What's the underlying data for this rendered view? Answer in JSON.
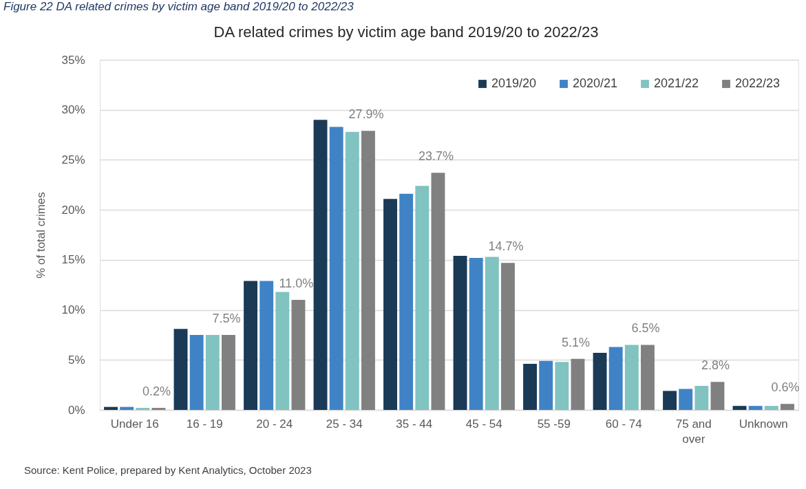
{
  "chart_data": {
    "type": "bar",
    "title": "DA related crimes by victim age band 2019/20 to 2022/23",
    "ylabel": "% of total crimes",
    "annotations": [
      "Figure 22 DA related crimes by victim age band 2019/20 to 2022/23",
      "Source: Kent Police, prepared by Kent Analytics, October 2023"
    ],
    "categories": [
      "Under 16",
      "16 - 19",
      "20 - 24",
      "25 - 34",
      "35 - 44",
      "45 - 54",
      "55 -59",
      "60 - 74",
      "75 and over",
      "Unknown"
    ],
    "series": [
      {
        "name": "2019/20",
        "color": "#1a3a56",
        "values": [
          0.3,
          8.1,
          12.9,
          29.0,
          21.1,
          15.4,
          4.6,
          5.7,
          1.9,
          0.4
        ]
      },
      {
        "name": "2020/21",
        "color": "#3f83c6",
        "values": [
          0.3,
          7.5,
          12.9,
          28.3,
          21.6,
          15.2,
          4.9,
          6.3,
          2.1,
          0.4
        ]
      },
      {
        "name": "2021/22",
        "color": "#80c3c0",
        "values": [
          0.2,
          7.5,
          11.8,
          27.8,
          22.4,
          15.3,
          4.8,
          6.5,
          2.4,
          0.4
        ]
      },
      {
        "name": "2022/23",
        "color": "#808080",
        "values": [
          0.2,
          7.5,
          11.0,
          27.9,
          23.7,
          14.7,
          5.1,
          6.5,
          2.8,
          0.6
        ],
        "value_labels": [
          "0.2%",
          "7.5%",
          "11.0%",
          "27.9%",
          "23.7%",
          "14.7%",
          "5.1%",
          "6.5%",
          "2.8%",
          "0.6%"
        ]
      }
    ],
    "ylim": [
      0,
      35
    ],
    "yticks": [
      {
        "value": 0,
        "label": "0%"
      },
      {
        "value": 5,
        "label": "5%"
      },
      {
        "value": 10,
        "label": "10%"
      },
      {
        "value": 15,
        "label": "15%"
      },
      {
        "value": 20,
        "label": "20%"
      },
      {
        "value": 25,
        "label": "25%"
      },
      {
        "value": 30,
        "label": "30%"
      },
      {
        "value": 35,
        "label": "35%"
      }
    ],
    "grid": "y",
    "legend": "top right"
  }
}
